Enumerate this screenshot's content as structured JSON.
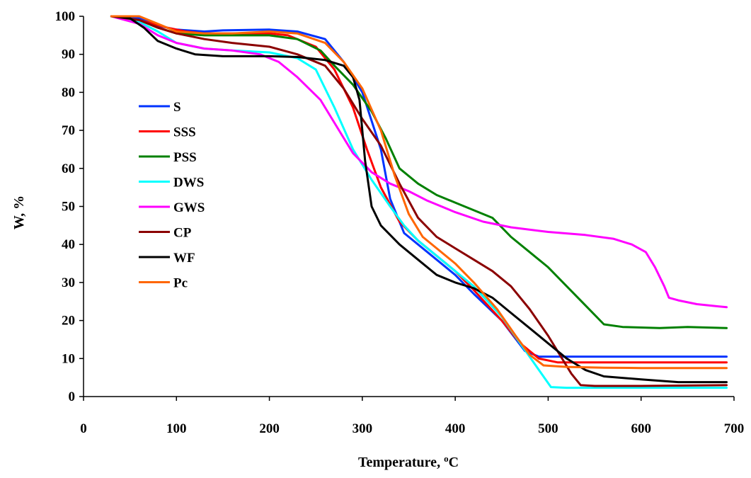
{
  "chart_data": {
    "type": "line",
    "title": "",
    "xlabel": "Temperature, ",
    "xlabel_unit": "C",
    "xlabel_unit_sup": "o",
    "ylabel": "W, %",
    "xlim": [
      0,
      700
    ],
    "ylim": [
      0,
      100
    ],
    "xticks": [
      0,
      100,
      200,
      300,
      400,
      500,
      600,
      700
    ],
    "yticks": [
      0,
      10,
      20,
      30,
      40,
      50,
      60,
      70,
      80,
      90,
      100
    ],
    "grid": false,
    "legend_position": "left-center",
    "series": [
      {
        "name": "S",
        "color": "#0033ff",
        "points": [
          [
            30,
            100
          ],
          [
            60,
            99.5
          ],
          [
            80,
            97.5
          ],
          [
            100,
            96.5
          ],
          [
            130,
            96
          ],
          [
            150,
            96.3
          ],
          [
            200,
            96.5
          ],
          [
            230,
            96
          ],
          [
            260,
            94
          ],
          [
            280,
            88
          ],
          [
            300,
            80
          ],
          [
            320,
            65
          ],
          [
            330,
            52
          ],
          [
            345,
            43
          ],
          [
            360,
            40
          ],
          [
            380,
            36
          ],
          [
            400,
            32
          ],
          [
            420,
            27
          ],
          [
            450,
            20
          ],
          [
            475,
            12
          ],
          [
            490,
            10.5
          ],
          [
            520,
            10.5
          ],
          [
            600,
            10.5
          ],
          [
            692,
            10.5
          ]
        ]
      },
      {
        "name": "SSS",
        "color": "#ff0000",
        "points": [
          [
            30,
            100
          ],
          [
            60,
            99
          ],
          [
            90,
            97
          ],
          [
            110,
            96
          ],
          [
            130,
            95.5
          ],
          [
            160,
            95.5
          ],
          [
            200,
            95.5
          ],
          [
            220,
            95
          ],
          [
            250,
            92
          ],
          [
            270,
            86
          ],
          [
            290,
            76
          ],
          [
            305,
            65
          ],
          [
            320,
            55
          ],
          [
            340,
            46
          ],
          [
            360,
            41
          ],
          [
            380,
            37
          ],
          [
            400,
            33
          ],
          [
            420,
            28
          ],
          [
            450,
            20
          ],
          [
            470,
            14
          ],
          [
            490,
            10
          ],
          [
            510,
            9
          ],
          [
            600,
            9
          ],
          [
            692,
            9
          ]
        ]
      },
      {
        "name": "PSS",
        "color": "#008000",
        "points": [
          [
            30,
            100
          ],
          [
            60,
            99
          ],
          [
            80,
            97
          ],
          [
            100,
            95.5
          ],
          [
            130,
            95
          ],
          [
            160,
            95
          ],
          [
            200,
            95
          ],
          [
            230,
            94
          ],
          [
            255,
            91
          ],
          [
            270,
            87
          ],
          [
            290,
            82
          ],
          [
            310,
            75
          ],
          [
            325,
            68
          ],
          [
            340,
            60
          ],
          [
            360,
            56
          ],
          [
            380,
            53
          ],
          [
            400,
            51
          ],
          [
            420,
            49
          ],
          [
            440,
            47
          ],
          [
            460,
            42
          ],
          [
            480,
            38
          ],
          [
            500,
            34
          ],
          [
            520,
            29
          ],
          [
            540,
            24
          ],
          [
            560,
            19
          ],
          [
            580,
            18.3
          ],
          [
            620,
            18
          ],
          [
            650,
            18.3
          ],
          [
            692,
            18
          ]
        ]
      },
      {
        "name": "DWS",
        "color": "#00ffff",
        "points": [
          [
            30,
            100
          ],
          [
            60,
            98.5
          ],
          [
            80,
            96
          ],
          [
            100,
            93
          ],
          [
            130,
            91.5
          ],
          [
            160,
            91
          ],
          [
            200,
            90.5
          ],
          [
            230,
            89
          ],
          [
            250,
            86
          ],
          [
            270,
            76
          ],
          [
            290,
            65
          ],
          [
            310,
            57
          ],
          [
            330,
            50
          ],
          [
            345,
            45
          ],
          [
            360,
            41
          ],
          [
            380,
            37
          ],
          [
            400,
            33
          ],
          [
            420,
            29
          ],
          [
            450,
            21
          ],
          [
            470,
            14
          ],
          [
            490,
            7
          ],
          [
            503,
            2.5
          ],
          [
            520,
            2.3
          ],
          [
            600,
            2.3
          ],
          [
            692,
            2.3
          ]
        ]
      },
      {
        "name": "GWS",
        "color": "#ff00ff",
        "points": [
          [
            30,
            100
          ],
          [
            60,
            98
          ],
          [
            80,
            95
          ],
          [
            100,
            93
          ],
          [
            130,
            91.5
          ],
          [
            160,
            91
          ],
          [
            190,
            90
          ],
          [
            210,
            88
          ],
          [
            230,
            84
          ],
          [
            255,
            78
          ],
          [
            275,
            70
          ],
          [
            290,
            64
          ],
          [
            310,
            59
          ],
          [
            330,
            56
          ],
          [
            350,
            54
          ],
          [
            370,
            51.5
          ],
          [
            400,
            48.5
          ],
          [
            430,
            46
          ],
          [
            460,
            44.5
          ],
          [
            500,
            43.3
          ],
          [
            540,
            42.5
          ],
          [
            570,
            41.5
          ],
          [
            590,
            40
          ],
          [
            605,
            38
          ],
          [
            615,
            34
          ],
          [
            625,
            29
          ],
          [
            630,
            26
          ],
          [
            640,
            25.3
          ],
          [
            660,
            24.3
          ],
          [
            692,
            23.5
          ]
        ]
      },
      {
        "name": "CP",
        "color": "#8b0000",
        "points": [
          [
            30,
            100
          ],
          [
            60,
            99
          ],
          [
            80,
            97
          ],
          [
            100,
            95.5
          ],
          [
            130,
            94
          ],
          [
            160,
            93
          ],
          [
            200,
            92
          ],
          [
            230,
            90
          ],
          [
            260,
            87
          ],
          [
            280,
            81
          ],
          [
            300,
            73
          ],
          [
            320,
            66
          ],
          [
            340,
            56
          ],
          [
            360,
            47
          ],
          [
            380,
            42
          ],
          [
            400,
            39
          ],
          [
            420,
            36
          ],
          [
            440,
            33
          ],
          [
            460,
            29
          ],
          [
            480,
            23
          ],
          [
            500,
            16
          ],
          [
            515,
            10
          ],
          [
            525,
            6
          ],
          [
            535,
            3
          ],
          [
            550,
            2.8
          ],
          [
            600,
            2.8
          ],
          [
            692,
            3
          ]
        ]
      },
      {
        "name": "WF",
        "color": "#000000",
        "points": [
          [
            30,
            100
          ],
          [
            50,
            99.5
          ],
          [
            65,
            97
          ],
          [
            80,
            93.5
          ],
          [
            100,
            91.5
          ],
          [
            120,
            90
          ],
          [
            150,
            89.5
          ],
          [
            200,
            89.5
          ],
          [
            230,
            89.3
          ],
          [
            260,
            88.5
          ],
          [
            280,
            87
          ],
          [
            290,
            84
          ],
          [
            297,
            78
          ],
          [
            303,
            62
          ],
          [
            310,
            50
          ],
          [
            320,
            45
          ],
          [
            340,
            40
          ],
          [
            360,
            36
          ],
          [
            380,
            32
          ],
          [
            400,
            30
          ],
          [
            420,
            28.5
          ],
          [
            440,
            26
          ],
          [
            460,
            22
          ],
          [
            480,
            18
          ],
          [
            500,
            14
          ],
          [
            520,
            10
          ],
          [
            540,
            7
          ],
          [
            560,
            5.3
          ],
          [
            600,
            4.5
          ],
          [
            640,
            3.8
          ],
          [
            692,
            3.8
          ]
        ]
      },
      {
        "name": "Pc",
        "color": "#ff6600",
        "points": [
          [
            30,
            100
          ],
          [
            60,
            100
          ],
          [
            80,
            98
          ],
          [
            100,
            96
          ],
          [
            130,
            95.5
          ],
          [
            160,
            95.5
          ],
          [
            200,
            96
          ],
          [
            230,
            95.5
          ],
          [
            260,
            93
          ],
          [
            280,
            88
          ],
          [
            300,
            81
          ],
          [
            320,
            70
          ],
          [
            335,
            58
          ],
          [
            350,
            48
          ],
          [
            365,
            42
          ],
          [
            380,
            39
          ],
          [
            400,
            35
          ],
          [
            420,
            30
          ],
          [
            445,
            23
          ],
          [
            465,
            16
          ],
          [
            480,
            11
          ],
          [
            495,
            8.2
          ],
          [
            520,
            7.8
          ],
          [
            560,
            7.6
          ],
          [
            600,
            7.5
          ],
          [
            692,
            7.5
          ]
        ]
      }
    ]
  }
}
